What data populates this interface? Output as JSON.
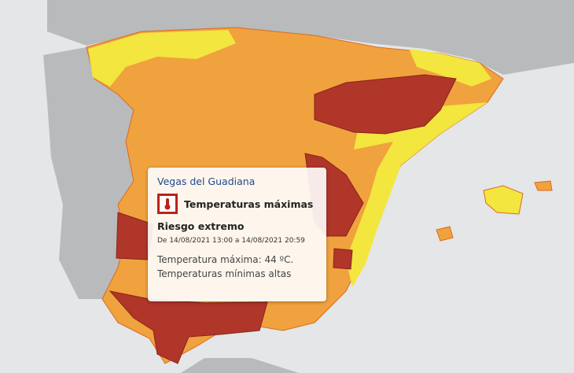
{
  "popup": {
    "title": "Vegas del Guadiana",
    "warning": "Temperaturas máximas",
    "level": "Riesgo extremo",
    "period": "De 14/08/2021 13:00 a 14/08/2021 20:59",
    "details": [
      "Temperatura máxima: 44 ºC.",
      "Temperaturas mínimas altas"
    ]
  }
}
